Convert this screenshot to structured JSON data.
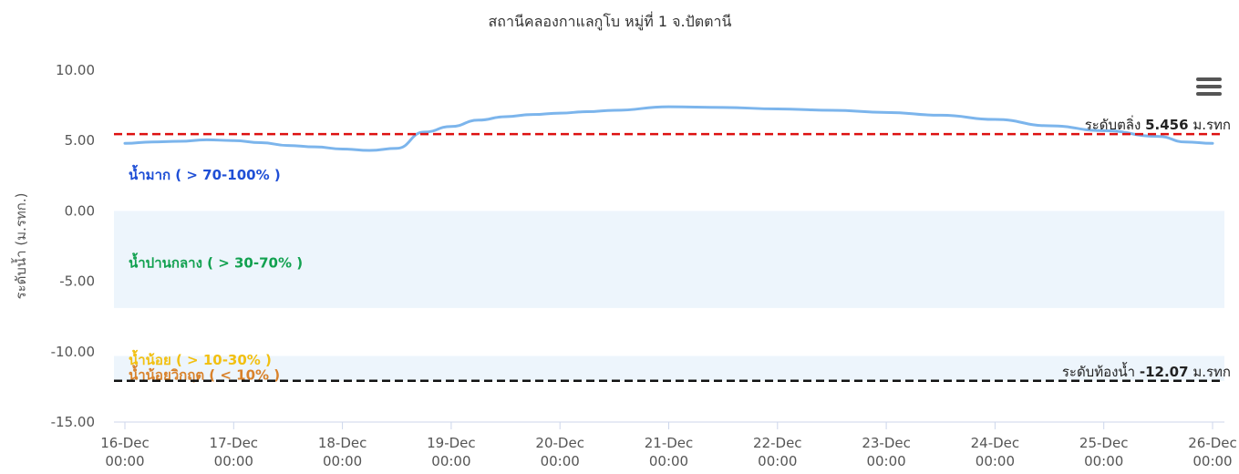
{
  "chart_data": {
    "type": "line",
    "title": "สถานีคลองกาแลกูโบ หมู่ที่ 1 จ.ปัตตานี",
    "ylabel": "ระดับน้ำ (ม.รทก.)",
    "xlabel": "",
    "ylim": [
      -15,
      10
    ],
    "yticks": [
      "10.00",
      "5.00",
      "0.00",
      "-5.00",
      "-10.00",
      "-15.00"
    ],
    "ytick_values": [
      10,
      5,
      0,
      -5,
      -10,
      -15
    ],
    "xticks": [
      {
        "day": "16-Dec",
        "time": "00:00",
        "x": 0
      },
      {
        "day": "17-Dec",
        "time": "00:00",
        "x": 1
      },
      {
        "day": "18-Dec",
        "time": "00:00",
        "x": 2
      },
      {
        "day": "19-Dec",
        "time": "00:00",
        "x": 3
      },
      {
        "day": "20-Dec",
        "time": "00:00",
        "x": 4
      },
      {
        "day": "21-Dec",
        "time": "00:00",
        "x": 5
      },
      {
        "day": "22-Dec",
        "time": "00:00",
        "x": 6
      },
      {
        "day": "23-Dec",
        "time": "00:00",
        "x": 7
      },
      {
        "day": "24-Dec",
        "time": "00:00",
        "x": 8
      },
      {
        "day": "25-Dec",
        "time": "00:00",
        "x": 9
      },
      {
        "day": "26-Dec",
        "time": "00:00",
        "x": 10
      }
    ],
    "series": [
      {
        "color": "#7cb5ec",
        "x": [
          0,
          0.25,
          0.5,
          0.75,
          1.0,
          1.25,
          1.5,
          1.75,
          2.0,
          2.25,
          2.5,
          2.75,
          3.0,
          3.25,
          3.5,
          3.75,
          4.0,
          4.25,
          4.5,
          5.0,
          5.5,
          6.0,
          6.5,
          7.0,
          7.5,
          8.0,
          8.5,
          9.0,
          9.5,
          9.75,
          10.0
        ],
        "values": [
          4.8,
          4.9,
          4.95,
          5.05,
          5.0,
          4.85,
          4.65,
          4.55,
          4.4,
          4.3,
          4.45,
          5.6,
          6.0,
          6.45,
          6.7,
          6.85,
          6.95,
          7.05,
          7.15,
          7.4,
          7.35,
          7.25,
          7.15,
          7.0,
          6.8,
          6.5,
          6.05,
          5.7,
          5.3,
          4.9,
          4.8
        ]
      }
    ],
    "plot_bands": [
      {
        "label": "น้ำมาก ( > 70-100% )",
        "from": 0.0,
        "to": 10.0,
        "fill": "#ffffff",
        "label_color": "#1f4fd6"
      },
      {
        "label": "น้ำปานกลาง ( > 30-70% )",
        "from": -6.9,
        "to": 0.0,
        "fill": "#edf5fc",
        "label_color": "#12a150"
      },
      {
        "label": "น้ำน้อย ( > 10-30% )",
        "from": -10.3,
        "to": -6.9,
        "fill": "#ffffff",
        "label_color": "#f2c011"
      },
      {
        "label": "น้ำน้อยวิกฤต ( < 10% )",
        "from": -12.07,
        "to": -10.3,
        "fill": "#edf5fc",
        "label_color": "#d9822b"
      }
    ],
    "plot_lines": [
      {
        "value": 5.456,
        "color": "#dd1111",
        "prefix": "ระดับตลิ่ง ",
        "number": "5.456",
        "unit": " ม.รทก"
      },
      {
        "value": -12.07,
        "color": "#111111",
        "prefix": "ระดับท้องน้ำ ",
        "number": "-12.07",
        "unit": " ม.รทก"
      }
    ],
    "legend": "none",
    "grid": false
  },
  "menu": {
    "icon": "hamburger-menu-icon"
  }
}
